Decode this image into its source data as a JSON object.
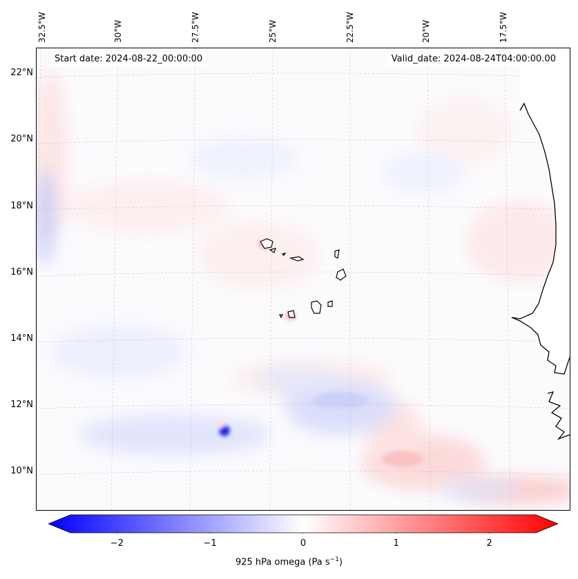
{
  "header": {
    "start_date": "Start date: 2024-08-22_00:00:00",
    "valid_date": "Valid_date: 2024-08-24T04:00:00.00"
  },
  "axes": {
    "lon_labels": [
      "32.5°W",
      "30°W",
      "27.5°W",
      "25°W",
      "22.5°W",
      "20°W",
      "17.5°W"
    ],
    "lat_labels": [
      "22°N",
      "20°N",
      "18°N",
      "16°N",
      "14°N",
      "12°N",
      "10°N"
    ],
    "lon_values": [
      -32.5,
      -30,
      -27.5,
      -25,
      -22.5,
      -20,
      -17.5
    ],
    "lat_values": [
      22,
      20,
      18,
      16,
      14,
      12,
      10
    ],
    "gridlines": true
  },
  "colorbar": {
    "label_prefix": "925 hPa omega (Pa s",
    "label_exp": "−1",
    "label_suffix": ")",
    "ticks": [
      "−2",
      "−1",
      "0",
      "1",
      "2"
    ],
    "tick_values": [
      -2,
      -1,
      0,
      1,
      2
    ],
    "range": [
      -2.75,
      2.75
    ],
    "extend": "both",
    "colormap": "bwr",
    "low_color": "#0000ff",
    "mid_color": "#ffffff",
    "high_color": "#ff0000"
  },
  "map": {
    "field": "925 hPa omega",
    "land_color": "#ffffff",
    "coast_color": "#000000"
  }
}
